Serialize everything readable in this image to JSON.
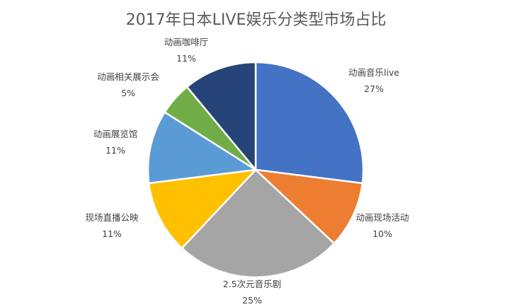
{
  "chart_data": {
    "type": "pie",
    "title": "2017年日本LIVE娱乐分类型市场占比",
    "slices": [
      {
        "label": "动画音乐live",
        "value": 27,
        "pct": "27%",
        "color": "#4472c4"
      },
      {
        "label": "动画现场活动",
        "value": 10,
        "pct": "10%",
        "color": "#ed7d31"
      },
      {
        "label": "2.5次元音乐剧",
        "value": 25,
        "pct": "25%",
        "color": "#a5a5a5"
      },
      {
        "label": "现场直播公映",
        "value": 11,
        "pct": "11%",
        "color": "#ffc000"
      },
      {
        "label": "动画展览馆",
        "value": 11,
        "pct": "11%",
        "color": "#5b9bd5"
      },
      {
        "label": "动画相关展示会",
        "value": 5,
        "pct": "5%",
        "color": "#70ad47"
      },
      {
        "label": "动画咖啡厅",
        "value": 11,
        "pct": "11%",
        "color": "#264478"
      }
    ],
    "start_angle": "12 o'clock",
    "direction": "clockwise",
    "legend": "none"
  }
}
